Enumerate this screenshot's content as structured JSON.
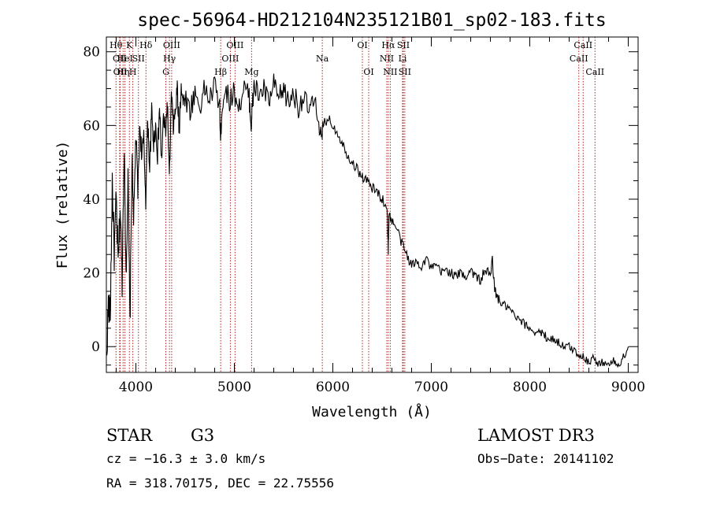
{
  "chart_data": {
    "type": "line",
    "title": "spec-56964-HD212104N235121B01_sp02-183.fits",
    "xlabel": "Wavelength (Å)",
    "ylabel": "Flux (relative)",
    "xlim": [
      3700,
      9100
    ],
    "ylim": [
      -7,
      84
    ],
    "xticks": [
      4000,
      5000,
      6000,
      7000,
      8000,
      9000
    ],
    "yticks": [
      0,
      20,
      40,
      60,
      80
    ],
    "series": [
      {
        "name": "flux",
        "x": [
          3700,
          3720,
          3740,
          3760,
          3780,
          3800,
          3820,
          3840,
          3860,
          3880,
          3900,
          3920,
          3940,
          3960,
          3980,
          4000,
          4020,
          4040,
          4060,
          4080,
          4100,
          4120,
          4140,
          4160,
          4180,
          4200,
          4220,
          4240,
          4260,
          4280,
          4300,
          4320,
          4340,
          4360,
          4380,
          4400,
          4420,
          4440,
          4460,
          4480,
          4500,
          4550,
          4600,
          4650,
          4700,
          4750,
          4800,
          4850,
          4860,
          4870,
          4900,
          4950,
          5000,
          5050,
          5100,
          5150,
          5170,
          5180,
          5200,
          5250,
          5300,
          5350,
          5400,
          5450,
          5500,
          5550,
          5600,
          5650,
          5700,
          5750,
          5800,
          5850,
          5890,
          5900,
          5950,
          6000,
          6050,
          6100,
          6150,
          6200,
          6250,
          6300,
          6350,
          6400,
          6450,
          6500,
          6550,
          6563,
          6570,
          6600,
          6650,
          6700,
          6750,
          6800,
          6850,
          6900,
          6950,
          7000,
          7050,
          7100,
          7150,
          7200,
          7250,
          7300,
          7350,
          7400,
          7450,
          7500,
          7550,
          7600,
          7620,
          7640,
          7660,
          7700,
          7750,
          7800,
          7850,
          7900,
          7950,
          8000,
          8050,
          8100,
          8150,
          8200,
          8250,
          8300,
          8350,
          8400,
          8450,
          8500,
          8550,
          8600,
          8650,
          8700,
          8750,
          8800,
          8850,
          8900,
          8950,
          9000
        ],
        "values": [
          -5,
          12,
          8,
          45,
          25,
          40,
          22,
          38,
          18,
          55,
          20,
          45,
          5,
          50,
          35,
          58,
          42,
          60,
          52,
          56,
          40,
          62,
          48,
          64,
          55,
          60,
          52,
          65,
          50,
          62,
          58,
          66,
          45,
          68,
          60,
          63,
          70,
          58,
          72,
          66,
          68,
          64,
          69,
          65,
          70,
          67,
          71,
          66,
          55,
          63,
          70,
          67,
          69,
          65,
          70,
          68,
          60,
          64,
          71,
          68,
          70,
          66,
          71,
          67,
          70,
          66,
          69,
          65,
          68,
          64,
          66,
          63,
          55,
          60,
          62,
          60,
          58,
          55,
          52,
          50,
          48,
          46,
          45,
          43,
          42,
          40,
          38,
          26,
          36,
          34,
          32,
          28,
          25,
          22,
          23,
          22,
          24,
          21,
          22,
          20,
          21,
          20,
          19,
          20,
          19,
          21,
          19,
          18,
          21,
          19,
          24,
          16,
          14,
          12,
          11,
          10,
          8,
          7,
          6,
          5,
          4,
          4,
          3,
          2,
          2,
          1,
          0,
          0,
          -1,
          -2,
          -3,
          -4,
          -3,
          -5,
          -4,
          -5,
          -4,
          -5,
          -3,
          0
        ]
      }
    ],
    "lines": [
      {
        "wl": 3798,
        "label": "Hθ",
        "row": 0
      },
      {
        "wl": 3835,
        "label": "OII",
        "row": 1
      },
      {
        "wl": 3840,
        "label": "OII",
        "row": 2
      },
      {
        "wl": 3870,
        "label": "Hη",
        "row": 2
      },
      {
        "wl": 3889,
        "label": "HeI",
        "row": 1
      },
      {
        "wl": 3934,
        "label": "K",
        "row": 0
      },
      {
        "wl": 3969,
        "label": "H",
        "row": 2
      },
      {
        "wl": 4026,
        "label": "SII",
        "row": 1
      },
      {
        "wl": 4102,
        "label": "Hδ",
        "row": 0
      },
      {
        "wl": 4304,
        "label": "G",
        "row": 2
      },
      {
        "wl": 4341,
        "label": "Hγ",
        "row": 1
      },
      {
        "wl": 4363,
        "label": "OIII",
        "row": 0
      },
      {
        "wl": 4861,
        "label": "Hβ",
        "row": 2
      },
      {
        "wl": 4959,
        "label": "OIII",
        "row": 1
      },
      {
        "wl": 5007,
        "label": "OIII",
        "row": 0
      },
      {
        "wl": 5175,
        "label": "Mg",
        "row": 2
      },
      {
        "wl": 5893,
        "label": "Na",
        "row": 1
      },
      {
        "wl": 6300,
        "label": "OI",
        "row": 0
      },
      {
        "wl": 6364,
        "label": "OI",
        "row": 2
      },
      {
        "wl": 6548,
        "label": "NII",
        "row": 1
      },
      {
        "wl": 6563,
        "label": "Hα",
        "row": 0
      },
      {
        "wl": 6583,
        "label": "NII",
        "row": 2
      },
      {
        "wl": 6708,
        "label": "Li",
        "row": 1
      },
      {
        "wl": 6716,
        "label": "SII",
        "row": 0
      },
      {
        "wl": 6731,
        "label": "SII",
        "row": 2
      },
      {
        "wl": 8498,
        "label": "CaII",
        "row": 1
      },
      {
        "wl": 8542,
        "label": "CaII",
        "row": 0
      },
      {
        "wl": 8662,
        "label": "CaII",
        "row": 2
      }
    ]
  },
  "info": {
    "object_type": "STAR",
    "subclass": "G3",
    "survey": "LAMOST DR3",
    "redshift": "cz = −16.3 ± 3.0 km/s",
    "obs_date": "Obs−Date: 20141102",
    "coords": "RA = 318.70175, DEC =  22.75556"
  },
  "colors": {
    "spectrum": "#000000",
    "line_marker": "#b22222",
    "axes": "#000000"
  }
}
